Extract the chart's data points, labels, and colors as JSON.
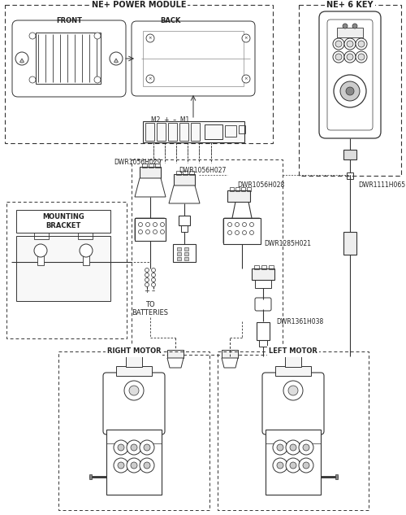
{
  "bg_color": "#ffffff",
  "lc": "#333333",
  "tc": "#222222",
  "labels": {
    "ne_power_module": "NE+ POWER MODULE",
    "ne_6_key": "NE+ 6 KEY",
    "front": "FRONT",
    "back": "BACK",
    "m2_plus_m1": "M2  +  –  M1",
    "mounting_bracket": "MOUNTING\nBRACKET",
    "to_batteries": "TO\nBATTERIES",
    "plus_label": "+",
    "minus_label": "–",
    "right_motor": "RIGHT MOTOR",
    "left_motor": "LEFT MOTOR",
    "dwr1056h029": "DWR1056H029",
    "dwr1056h027": "DWR1056H027",
    "dwr1056h028": "DWR1056H028",
    "dwr1285h021": "DWR1285H021",
    "dwr1361h038": "DWR1361H038",
    "dwr1111h065": "DWR1111H065"
  }
}
